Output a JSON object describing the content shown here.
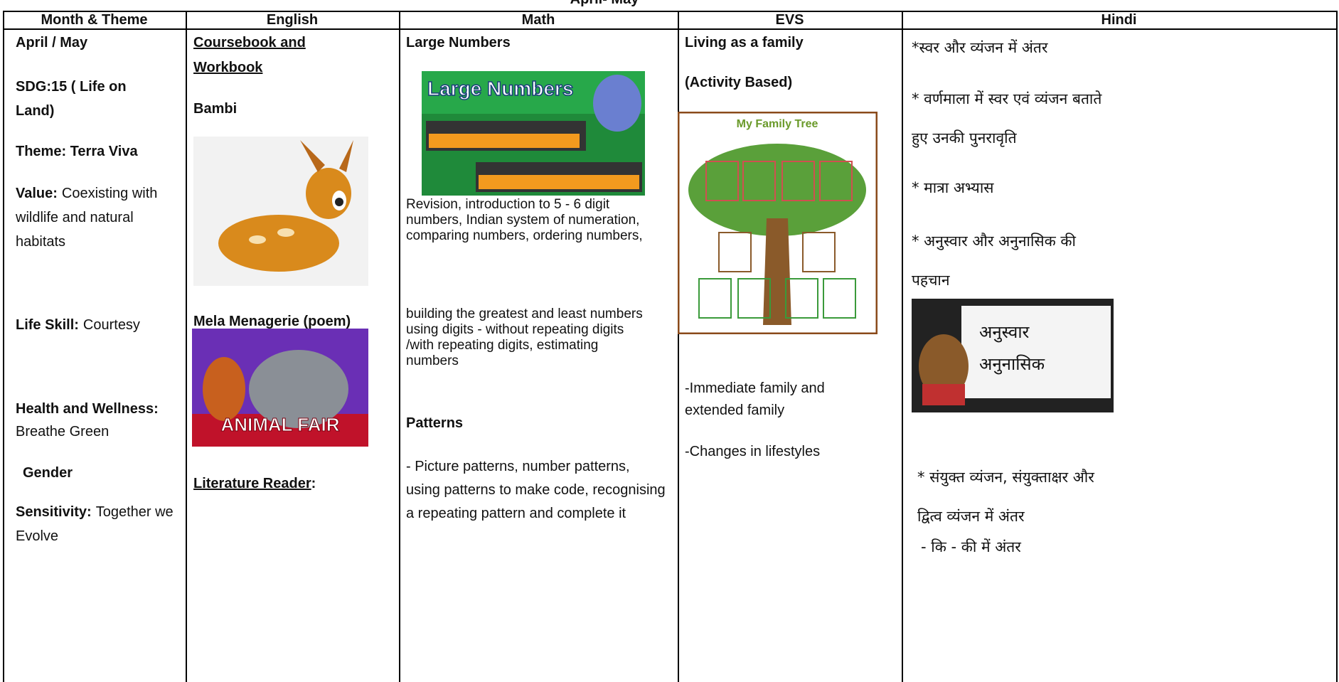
{
  "title": "April- May",
  "table": {
    "headers": [
      "Month & Theme",
      "English",
      "Math",
      "EVS",
      "Hindi"
    ],
    "month_theme": {
      "month": "April / May",
      "sdg": "SDG:15 ( Life on Land)",
      "theme": "Theme: Terra Viva",
      "value_label": "Value:",
      "value": "Coexisting with wildlife and natural habitats",
      "life_skill_label": "Life Skill:",
      "life_skill": "Courtesy",
      "health_label": "Health and Wellness:",
      "health": "Breathe Green",
      "gender": "Gender",
      "sensitivity_label": "Sensitivity:",
      "sensitivity": "Together we Evolve"
    },
    "english": {
      "coursebook": "Coursebook and Workbook",
      "lesson": "Bambi",
      "poem": "Mela Menagerie (poem)",
      "literature": "Literature Reader",
      "literature_colon": ":"
    },
    "math": {
      "topic1": "Large Numbers",
      "topic1_details": "Revision, introduction to 5 - 6 digit numbers, Indian system of numeration, comparing numbers, ordering numbers,",
      "topic1_details_2": "building the greatest and least numbers using digits - without repeating digits /with repeating digits, estimating numbers",
      "topic2": "Patterns",
      "topic2_details": "- Picture patterns, number patterns, using patterns to make code, recognising a repeating pattern and complete it"
    },
    "evs": {
      "topic": "Living as a family",
      "note": "(Activity Based)",
      "points": [
        "-Immediate family and extended family",
        "-Changes in lifestyles"
      ]
    },
    "hindi": {
      "points": [
        "*स्वर और व्यंजन में अंतर",
        "* वर्णमाला में स्वर एवं व्यंजन बताते  हुए उनकी पुनरावृति",
        "* मात्रा अभ्यास",
        "* अनुस्वार और अनुनासिक की पहचान",
        "* संयुक्त व्यंजन, संयुक्ताक्षर और द्वित्व व्यंजन में अंतर",
        "- कि - की में अंतर"
      ]
    }
  },
  "images": {
    "large_numbers": "Large Numbers",
    "animal_fair": "ANIMAL FAIR",
    "family_tree": "My Family Tree",
    "anusvar": "अनुस्वार",
    "anunasik": "अनुनासिक"
  }
}
